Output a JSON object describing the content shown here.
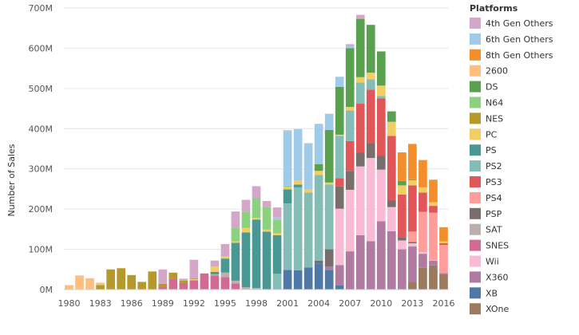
{
  "chart_data": {
    "type": "bar",
    "stacked": true,
    "title": "",
    "xlabel": "",
    "ylabel": "Number of Sales",
    "ylim": [
      0,
      700
    ],
    "y_ticks": [
      0,
      100,
      200,
      300,
      400,
      500,
      600,
      700
    ],
    "y_tick_labels": [
      "0M",
      "100M",
      "200M",
      "300M",
      "400M",
      "500M",
      "600M",
      "700M"
    ],
    "x_tick_labels": [
      "1980",
      "1983",
      "1986",
      "1989",
      "1992",
      "1995",
      "1998",
      "2001",
      "2004",
      "2007",
      "2010",
      "2013",
      "2016"
    ],
    "grid": true,
    "legend_position": "right",
    "legend_title": "Platforms",
    "categories": [
      "1980",
      "1981",
      "1982",
      "1983",
      "1984",
      "1985",
      "1986",
      "1987",
      "1988",
      "1989",
      "1990",
      "1991",
      "1992",
      "1993",
      "1994",
      "1995",
      "1996",
      "1997",
      "1998",
      "1999",
      "2000",
      "2001",
      "2002",
      "2003",
      "2004",
      "2005",
      "2006",
      "2007",
      "2008",
      "2009",
      "2010",
      "2011",
      "2012",
      "2013",
      "2014",
      "2015",
      "2016"
    ],
    "series": [
      {
        "name": "XOne",
        "color": "#9c7a5e",
        "values": [
          0,
          0,
          0,
          0,
          0,
          0,
          0,
          0,
          0,
          0,
          0,
          0,
          0,
          0,
          0,
          0,
          0,
          0,
          0,
          0,
          0,
          0,
          0,
          0,
          0,
          0,
          0,
          0,
          0,
          0,
          0,
          0,
          0,
          19,
          54,
          60,
          39
        ]
      },
      {
        "name": "XB",
        "color": "#4e79a7",
        "values": [
          0,
          0,
          0,
          0,
          0,
          0,
          0,
          0,
          0,
          0,
          0,
          0,
          0,
          0,
          0,
          0,
          0,
          0,
          0,
          0,
          0,
          49,
          48,
          55,
          65,
          49,
          10,
          0,
          0,
          0,
          0,
          0,
          0,
          0,
          0,
          0,
          0
        ]
      },
      {
        "name": "X360",
        "color": "#b07aa1",
        "values": [
          0,
          0,
          0,
          0,
          0,
          0,
          0,
          0,
          0,
          0,
          0,
          0,
          0,
          0,
          0,
          0,
          0,
          0,
          0,
          0,
          0,
          0,
          0,
          0,
          0,
          8,
          51,
          95,
          135,
          120,
          170,
          145,
          100,
          88,
          35,
          12,
          2
        ]
      },
      {
        "name": "Wii",
        "color": "#f9bbd3",
        "values": [
          0,
          0,
          0,
          0,
          0,
          0,
          0,
          0,
          0,
          0,
          0,
          0,
          0,
          0,
          0,
          0,
          0,
          0,
          0,
          0,
          0,
          0,
          0,
          0,
          0,
          0,
          140,
          153,
          171,
          207,
          128,
          60,
          22,
          8,
          4,
          1,
          0
        ]
      },
      {
        "name": "SNES",
        "color": "#d26a92",
        "values": [
          0,
          0,
          0,
          0,
          0,
          0,
          0,
          0,
          0,
          6,
          26,
          16,
          23,
          40,
          35,
          31,
          15,
          0,
          0,
          0,
          0,
          0,
          0,
          0,
          0,
          0,
          0,
          0,
          0,
          0,
          0,
          0,
          0,
          0,
          0,
          0,
          0
        ]
      },
      {
        "name": "SAT",
        "color": "#bab0ac",
        "values": [
          0,
          0,
          0,
          0,
          0,
          0,
          0,
          0,
          0,
          0,
          0,
          0,
          0,
          0,
          3,
          11,
          7,
          6,
          4,
          0,
          0,
          0,
          0,
          0,
          0,
          0,
          0,
          0,
          0,
          0,
          0,
          0,
          0,
          0,
          0,
          0,
          0
        ]
      },
      {
        "name": "PSP",
        "color": "#7a6e6c",
        "values": [
          0,
          0,
          0,
          0,
          0,
          0,
          0,
          0,
          0,
          0,
          0,
          0,
          0,
          0,
          0,
          0,
          0,
          0,
          0,
          0,
          0,
          0,
          0,
          0,
          7,
          43,
          55,
          47,
          35,
          37,
          35,
          17,
          7,
          3,
          0,
          0,
          0
        ]
      },
      {
        "name": "PS4",
        "color": "#ff9d9a",
        "values": [
          0,
          0,
          0,
          0,
          0,
          0,
          0,
          0,
          0,
          0,
          0,
          0,
          0,
          0,
          0,
          0,
          0,
          0,
          0,
          0,
          0,
          0,
          0,
          0,
          0,
          0,
          0,
          0,
          0,
          0,
          0,
          0,
          0,
          26,
          100,
          118,
          70
        ]
      },
      {
        "name": "PS3",
        "color": "#e15759",
        "values": [
          0,
          0,
          0,
          0,
          0,
          0,
          0,
          0,
          0,
          0,
          0,
          0,
          0,
          0,
          0,
          0,
          0,
          0,
          0,
          0,
          0,
          0,
          0,
          0,
          0,
          0,
          21,
          74,
          121,
          133,
          142,
          160,
          107,
          115,
          48,
          17,
          4
        ]
      },
      {
        "name": "PS2",
        "color": "#86bcb6",
        "values": [
          0,
          0,
          0,
          0,
          0,
          0,
          0,
          0,
          0,
          0,
          0,
          0,
          0,
          0,
          0,
          0,
          0,
          0,
          0,
          0,
          39,
          165,
          206,
          186,
          213,
          161,
          105,
          76,
          53,
          26,
          6,
          0,
          0,
          0,
          0,
          0,
          0
        ]
      },
      {
        "name": "PS",
        "color": "#499894",
        "values": [
          0,
          0,
          0,
          0,
          0,
          0,
          0,
          0,
          0,
          0,
          0,
          0,
          0,
          0,
          6,
          35,
          94,
          136,
          170,
          144,
          96,
          35,
          7,
          0,
          0,
          0,
          0,
          0,
          0,
          0,
          0,
          0,
          0,
          0,
          0,
          0,
          0
        ]
      },
      {
        "name": "PC",
        "color": "#f1ce63",
        "values": [
          0,
          0,
          0,
          0,
          0,
          0,
          0,
          0,
          0,
          0,
          0,
          0,
          3,
          0,
          13,
          5,
          4,
          11,
          4,
          5,
          5,
          6,
          10,
          8,
          10,
          5,
          3,
          9,
          13,
          16,
          26,
          35,
          23,
          13,
          13,
          9,
          5
        ]
      },
      {
        "name": "NES",
        "color": "#b6992d",
        "values": [
          0,
          0,
          0,
          11,
          50,
          53,
          36,
          19,
          45,
          8,
          16,
          6,
          2,
          0,
          0,
          0,
          0,
          0,
          0,
          0,
          0,
          0,
          0,
          0,
          0,
          0,
          0,
          0,
          0,
          0,
          0,
          0,
          0,
          0,
          0,
          0,
          0
        ]
      },
      {
        "name": "N64",
        "color": "#8cd17d",
        "values": [
          0,
          0,
          0,
          0,
          0,
          0,
          0,
          0,
          0,
          0,
          0,
          0,
          0,
          0,
          0,
          0,
          34,
          40,
          49,
          57,
          34,
          3,
          0,
          0,
          0,
          0,
          0,
          0,
          0,
          0,
          0,
          0,
          0,
          0,
          0,
          0,
          0
        ]
      },
      {
        "name": "DS",
        "color": "#59a14f",
        "values": [
          0,
          0,
          0,
          0,
          0,
          0,
          0,
          0,
          0,
          0,
          0,
          0,
          0,
          0,
          0,
          0,
          0,
          0,
          0,
          0,
          0,
          0,
          0,
          0,
          17,
          131,
          119,
          146,
          145,
          119,
          85,
          26,
          11,
          2,
          0,
          0,
          0
        ]
      },
      {
        "name": "2600",
        "color": "#ffbe7d",
        "values": [
          11,
          35,
          28,
          6,
          0,
          0,
          0,
          0,
          0,
          0,
          0,
          0,
          0,
          0,
          0,
          0,
          0,
          0,
          0,
          0,
          0,
          0,
          0,
          0,
          0,
          0,
          0,
          0,
          0,
          0,
          0,
          0,
          0,
          0,
          0,
          0,
          0
        ]
      },
      {
        "name": "8th Gen Others",
        "color": "#f28e2b",
        "values": [
          0,
          0,
          0,
          0,
          0,
          0,
          0,
          0,
          0,
          0,
          0,
          0,
          0,
          0,
          0,
          0,
          0,
          0,
          0,
          0,
          0,
          0,
          0,
          0,
          0,
          0,
          0,
          0,
          0,
          0,
          0,
          0,
          71,
          88,
          68,
          56,
          35
        ]
      },
      {
        "name": "6th Gen Others",
        "color": "#a0cbe8",
        "values": [
          0,
          0,
          0,
          0,
          0,
          0,
          0,
          0,
          0,
          0,
          0,
          0,
          0,
          0,
          0,
          0,
          0,
          0,
          0,
          0,
          5,
          136,
          128,
          115,
          100,
          40,
          25,
          5,
          0,
          0,
          0,
          0,
          0,
          0,
          0,
          0,
          0
        ]
      },
      {
        "name": "4th Gen Others",
        "color": "#d4a6c8",
        "values": [
          0,
          0,
          0,
          0,
          0,
          0,
          0,
          0,
          0,
          36,
          0,
          5,
          46,
          0,
          15,
          31,
          40,
          30,
          30,
          14,
          25,
          2,
          0,
          0,
          0,
          0,
          0,
          5,
          10,
          0,
          0,
          0,
          0,
          0,
          0,
          0,
          0
        ]
      }
    ],
    "legend_order": [
      "4th Gen Others",
      "6th Gen Others",
      "8th Gen Others",
      "2600",
      "DS",
      "N64",
      "NES",
      "PC",
      "PS",
      "PS2",
      "PS3",
      "PS4",
      "PSP",
      "SAT",
      "SNES",
      "Wii",
      "X360",
      "XB",
      "XOne"
    ]
  }
}
